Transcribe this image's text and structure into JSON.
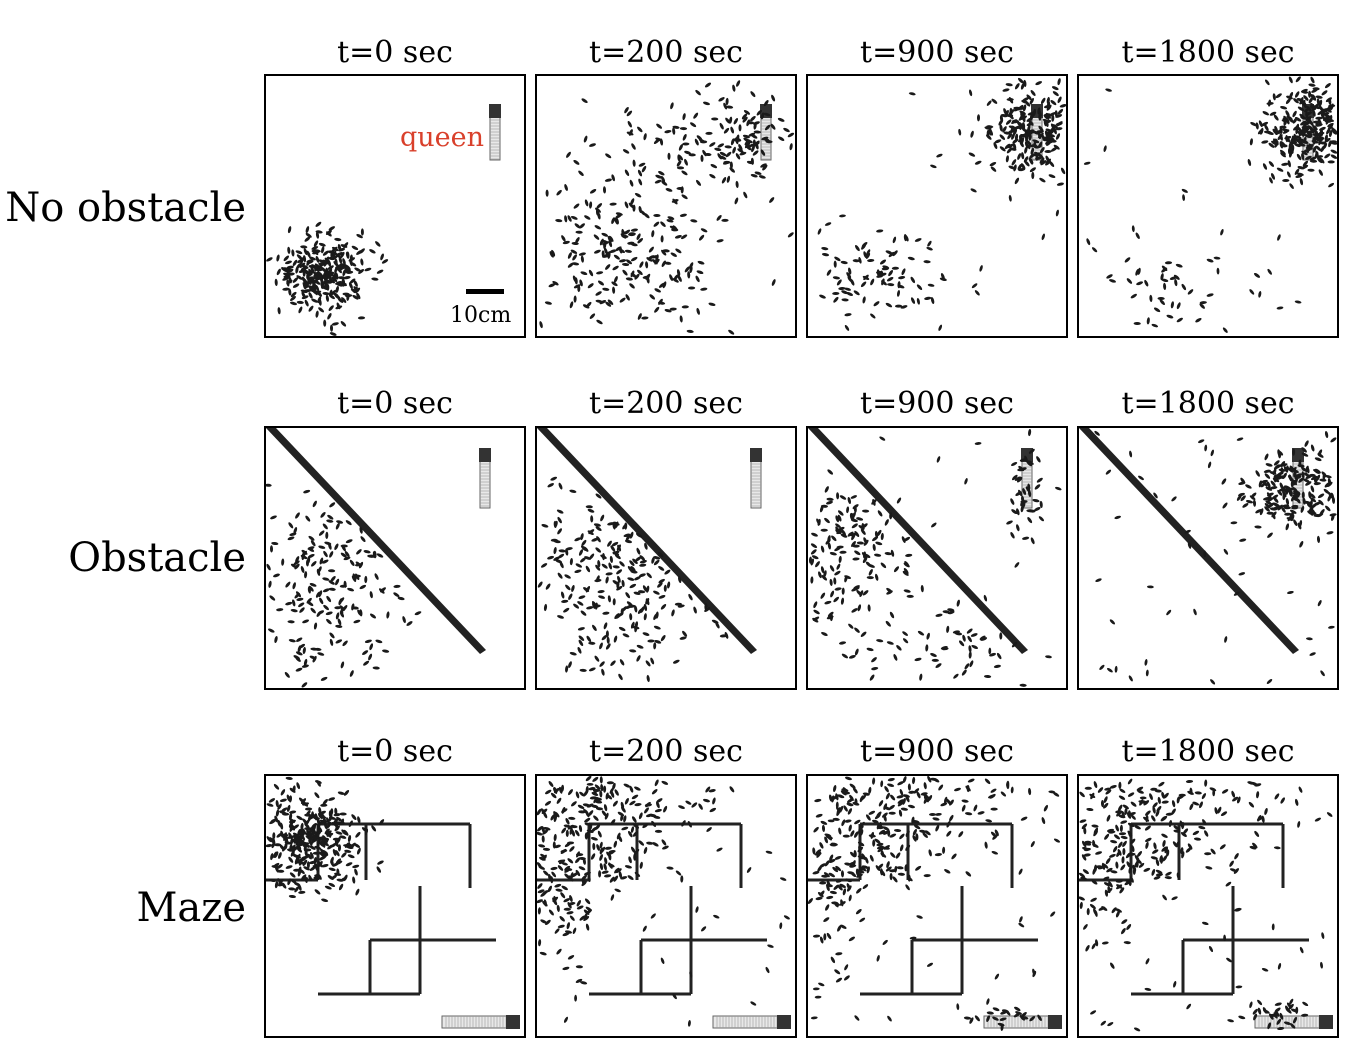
{
  "figure": {
    "rows": [
      {
        "label": "No obstacle",
        "times": [
          "t=0 sec",
          "t=200 sec",
          "t=900 sec",
          "t=1800 sec"
        ]
      },
      {
        "label": "Obstacle",
        "times": [
          "t=0 sec",
          "t=200 sec",
          "t=900 sec",
          "t=1800 sec"
        ]
      },
      {
        "label": "Maze",
        "times": [
          "t=0 sec",
          "t=200 sec",
          "t=900 sec",
          "t=1800 sec"
        ]
      }
    ],
    "annotations": {
      "queen_label": "queen",
      "scale_label": "10cm"
    },
    "colors": {
      "queen_label": "#d9402b",
      "ant": "#1a1a1a",
      "wall": "#222222",
      "background": "#ffffff"
    }
  }
}
